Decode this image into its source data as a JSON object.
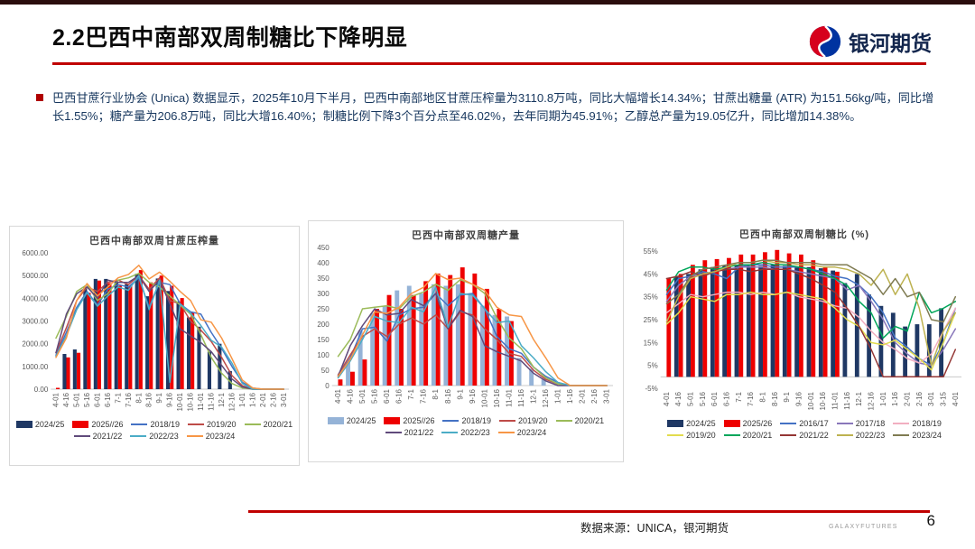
{
  "header": {
    "title": "2.2巴西中南部双周制糖比下降明显",
    "logo_text": "银河期货"
  },
  "summary": {
    "text": "巴西甘蔗行业协会 (Unica) 数据显示，2025年10月下半月，巴西中南部地区甘蔗压榨量为3110.8万吨，同比大幅增长14.34%；甘蔗出糖量 (ATR) 为151.56kg/吨，同比增长1.55%；糖产量为206.8万吨，同比大增16.40%；制糖比例下降3个百分点至46.02%，去年同期为45.91%；乙醇总产量为19.05亿升，同比增加14.38%。"
  },
  "footer": {
    "source": "数据来源：UNICA，银河期货",
    "brand": "GALAXYFUTURES",
    "page_number": "6"
  },
  "colors": {
    "accent_red": "#C00000",
    "top_bar": "#2A0D0D",
    "body_text": "#17375E",
    "logo_red": "#D6001C",
    "logo_blue": "#0033A0"
  },
  "chart_data": [
    {
      "type": "combo",
      "title": "巴西中南部双周甘蔗压榨量",
      "ylim": [
        0,
        6000
      ],
      "ytick_values": [
        0,
        1000,
        2000,
        3000,
        4000,
        5000,
        6000
      ],
      "ytick_labels": [
        "0.00",
        "1000.00",
        "2000.00",
        "3000.00",
        "4000.00",
        "5000.00",
        "6000.00"
      ],
      "grid": false,
      "legend_position": "bottom",
      "categories": [
        "4-01",
        "4-16",
        "5-01",
        "5-16",
        "6-01",
        "6-16",
        "7-1",
        "7-16",
        "8-1",
        "8-16",
        "9-1",
        "9-16",
        "10-01",
        "10-16",
        "11-01",
        "11-16",
        "12-1",
        "12-16",
        "1-01",
        "1-16",
        "2-01",
        "2-16",
        "3-01"
      ],
      "series": [
        {
          "name": "2024/25",
          "kind": "bar",
          "color": "#1F3864",
          "values": [
            null,
            1550,
            1750,
            4470,
            4850,
            4850,
            4780,
            4620,
            5080,
            4090,
            4870,
            4320,
            3860,
            3160,
            2750,
            1650,
            2000,
            800,
            null,
            null,
            null,
            null,
            null
          ]
        },
        {
          "name": "2025//26",
          "kind": "bar",
          "color": "#EE0000",
          "values": [
            60,
            1400,
            1600,
            4240,
            4780,
            4670,
            4550,
            4550,
            5240,
            4700,
            5000,
            4550,
            4010,
            3390,
            null,
            null,
            null,
            null,
            null,
            null,
            null,
            null,
            null
          ]
        },
        {
          "name": "2018/19",
          "kind": "line",
          "color": "#4472C4",
          "values": [
            1500,
            2500,
            3600,
            4300,
            3700,
            4400,
            4600,
            4500,
            4900,
            3600,
            4700,
            4600,
            3750,
            3400,
            3300,
            2500,
            1800,
            1000,
            300,
            50,
            0,
            0,
            0
          ]
        },
        {
          "name": "2019/20",
          "kind": "line",
          "color": "#BE4B48",
          "values": [
            1600,
            2700,
            3900,
            4500,
            4300,
            4700,
            4800,
            4600,
            5000,
            4400,
            4900,
            3900,
            3750,
            3000,
            2600,
            2100,
            1400,
            600,
            150,
            0,
            0,
            0,
            0
          ]
        },
        {
          "name": "2020/21",
          "kind": "line",
          "color": "#9BBB59",
          "values": [
            2250,
            3200,
            4300,
            4600,
            3900,
            4200,
            4800,
            4900,
            5100,
            4700,
            4500,
            4100,
            3700,
            3300,
            2400,
            1400,
            700,
            250,
            50,
            0,
            0,
            0,
            0
          ]
        },
        {
          "name": "2021/22",
          "kind": "line",
          "color": "#604A7B",
          "values": [
            1600,
            3300,
            4200,
            4500,
            4000,
            4800,
            4700,
            4700,
            5000,
            4300,
            4800,
            3750,
            2650,
            2350,
            2050,
            1650,
            1050,
            450,
            100,
            0,
            0,
            0,
            0
          ]
        },
        {
          "name": "2022/23",
          "kind": "line",
          "color": "#4BACC6",
          "values": [
            1450,
            2350,
            3500,
            4250,
            3650,
            4100,
            4500,
            4350,
            5000,
            3500,
            4800,
            300,
            3750,
            3350,
            2800,
            2150,
            1850,
            1150,
            250,
            0,
            0,
            0,
            0
          ]
        },
        {
          "name": "2023/24",
          "kind": "line",
          "color": "#F79646",
          "values": [
            1400,
            2250,
            3900,
            4650,
            4100,
            4500,
            4900,
            5050,
            5450,
            4850,
            5150,
            4750,
            4300,
            3900,
            3050,
            2950,
            2250,
            1350,
            400,
            50,
            0,
            0,
            0
          ]
        }
      ]
    },
    {
      "type": "combo",
      "title": "巴西中南部双周糖产量",
      "ylim": [
        0,
        450
      ],
      "ytick_values": [
        0,
        50,
        100,
        150,
        200,
        250,
        300,
        350,
        400,
        450
      ],
      "ytick_labels": [
        "0",
        "50",
        "100",
        "150",
        "200",
        "250",
        "300",
        "350",
        "400",
        "450"
      ],
      "grid": false,
      "legend_position": "bottom",
      "categories": [
        "4-01",
        "4-16",
        "5-01",
        "5-16",
        "6-01",
        "6-16",
        "7-1",
        "7-16",
        "8-1",
        "8-16",
        "9-1",
        "9-16",
        "10-01",
        "10-16",
        "11-01",
        "11-16",
        "12-1",
        "12-16",
        "1-01",
        "1-16",
        "2-01",
        "2-16",
        "3-01"
      ],
      "series": [
        {
          "name": "2024/25",
          "kind": "bar",
          "color": "#95B3D7",
          "values": [
            null,
            75,
            180,
            235,
            260,
            310,
            325,
            300,
            330,
            325,
            330,
            300,
            260,
            230,
            225,
            90,
            55,
            20,
            null,
            null,
            null,
            null,
            null
          ]
        },
        {
          "name": "2025//26",
          "kind": "bar",
          "color": "#EE0000",
          "values": [
            20,
            45,
            85,
            250,
            295,
            250,
            295,
            340,
            365,
            360,
            385,
            365,
            315,
            250,
            210,
            null,
            null,
            null,
            null,
            null,
            null,
            null,
            null
          ]
        },
        {
          "name": "2018/19",
          "kind": "line",
          "color": "#4472C4",
          "values": [
            30,
            90,
            185,
            190,
            145,
            230,
            250,
            255,
            300,
            260,
            295,
            300,
            250,
            160,
            120,
            105,
            60,
            30,
            10,
            0,
            0,
            0,
            0
          ]
        },
        {
          "name": "2019/20",
          "kind": "line",
          "color": "#BE4B48",
          "values": [
            35,
            100,
            160,
            185,
            160,
            200,
            220,
            200,
            230,
            185,
            240,
            230,
            185,
            150,
            105,
            95,
            50,
            20,
            5,
            0,
            0,
            0,
            0
          ]
        },
        {
          "name": "2020/21",
          "kind": "line",
          "color": "#9BBB59",
          "values": [
            95,
            150,
            250,
            255,
            260,
            250,
            290,
            305,
            330,
            310,
            345,
            330,
            300,
            220,
            155,
            120,
            60,
            25,
            5,
            0,
            0,
            0,
            0
          ]
        },
        {
          "name": "2021/22",
          "kind": "line",
          "color": "#604A7B",
          "values": [
            30,
            130,
            195,
            250,
            230,
            235,
            280,
            260,
            300,
            185,
            245,
            225,
            130,
            110,
            95,
            80,
            40,
            15,
            0,
            0,
            0,
            0,
            0
          ]
        },
        {
          "name": "2022/23",
          "kind": "line",
          "color": "#4BACC6",
          "values": [
            25,
            80,
            150,
            225,
            210,
            205,
            255,
            240,
            320,
            190,
            300,
            295,
            250,
            205,
            210,
            130,
            90,
            45,
            10,
            0,
            0,
            0,
            0
          ]
        },
        {
          "name": "2023/24",
          "kind": "line",
          "color": "#F79646",
          "values": [
            30,
            85,
            165,
            240,
            235,
            255,
            300,
            320,
            365,
            345,
            350,
            330,
            310,
            255,
            230,
            225,
            150,
            90,
            25,
            0,
            0,
            0,
            0
          ]
        }
      ]
    },
    {
      "type": "combo",
      "title": "巴西中南部双周制糖比 (%)",
      "ylim": [
        -5,
        57
      ],
      "ytick_values": [
        -5,
        5,
        15,
        25,
        35,
        45,
        55
      ],
      "ytick_labels": [
        "-5%",
        "5%",
        "15%",
        "25%",
        "35%",
        "45%",
        "55%"
      ],
      "grid": false,
      "legend_position": "bottom",
      "categories": [
        "4-01",
        "4-16",
        "5-01",
        "5-16",
        "6-01",
        "6-16",
        "7-1",
        "7-16",
        "8-1",
        "8-16",
        "9-1",
        "9-16",
        "10-01",
        "10-16",
        "11-01",
        "11-16",
        "12-1",
        "12-16",
        "1-01",
        "1-16",
        "2-01",
        "2-16",
        "3-01",
        "3-15",
        "4-01"
      ],
      "series": [
        {
          "name": "2024/25",
          "kind": "bar",
          "color": "#1F3864",
          "values": [
            null,
            44,
            45,
            47,
            48,
            48.5,
            49,
            48.5,
            48.5,
            49,
            48.5,
            48,
            48,
            47.5,
            46.5,
            41,
            45,
            36,
            31,
            28,
            22,
            23,
            23,
            30,
            null
          ]
        },
        {
          "name": "2025/26",
          "kind": "bar",
          "color": "#EE0000",
          "values": [
            43,
            45,
            49,
            51,
            51.5,
            52,
            53.5,
            53.5,
            54.5,
            55.5,
            54,
            53.5,
            51,
            48,
            46,
            null,
            null,
            null,
            null,
            null,
            null,
            null,
            null,
            null,
            null
          ]
        },
        {
          "name": "2016/17",
          "kind": "line",
          "color": "#4472C4",
          "values": [
            36,
            43,
            44,
            46,
            45,
            43,
            48,
            49,
            49,
            48,
            48,
            48,
            47,
            46,
            44,
            43,
            40,
            35,
            28,
            17,
            13,
            8,
            5,
            15,
            30
          ]
        },
        {
          "name": "2017/18",
          "kind": "line",
          "color": "#8977BA",
          "values": [
            33,
            40,
            44,
            45,
            46,
            47,
            48,
            48,
            48,
            47,
            47,
            46,
            45,
            44,
            43,
            38,
            40,
            33,
            25,
            15,
            10,
            6,
            5,
            12,
            21
          ]
        },
        {
          "name": "2018/19",
          "kind": "line",
          "color": "#F2AFC1",
          "values": [
            28,
            32,
            36,
            35,
            36,
            37,
            37,
            36,
            37,
            36,
            37,
            35,
            34,
            33,
            31,
            30,
            26,
            20,
            15,
            12,
            8,
            6,
            10,
            20,
            30
          ]
        },
        {
          "name": "2019/20",
          "kind": "line",
          "color": "#E2DC4E",
          "values": [
            23,
            28,
            35,
            34,
            33,
            36,
            36,
            37,
            36,
            36,
            37,
            36,
            35,
            34,
            30,
            25,
            22,
            15,
            14,
            16,
            12,
            8,
            3,
            15,
            28
          ]
        },
        {
          "name": "2020/21",
          "kind": "line",
          "color": "#00A65A",
          "values": [
            38,
            46,
            48,
            48,
            47,
            48,
            49,
            49,
            50,
            49,
            49,
            48,
            47,
            45,
            43,
            40,
            33,
            28,
            17,
            22,
            20,
            37,
            28,
            30,
            33
          ]
        },
        {
          "name": "2021/22",
          "kind": "line",
          "color": "#943634",
          "values": [
            43,
            44,
            46,
            44,
            46,
            47,
            47,
            46,
            47,
            47,
            47,
            45,
            43,
            40,
            37,
            30,
            22,
            12,
            0,
            0,
            0,
            0,
            0,
            0,
            12
          ]
        },
        {
          "name": "2022/23",
          "kind": "line",
          "color": "#BDB250",
          "values": [
            24,
            35,
            43,
            45,
            46,
            48,
            50,
            50,
            51,
            50,
            50,
            49,
            49,
            48,
            48,
            47,
            45,
            40,
            47,
            36,
            45,
            30,
            5,
            20,
            28
          ]
        },
        {
          "name": "2023/24",
          "kind": "line",
          "color": "#7F7B52",
          "values": [
            32,
            36,
            44,
            47,
            48,
            49,
            50,
            50,
            51,
            51,
            50,
            50,
            50,
            49,
            49,
            49,
            46,
            43,
            36,
            43,
            35,
            37,
            25,
            24,
            35
          ]
        }
      ]
    }
  ]
}
